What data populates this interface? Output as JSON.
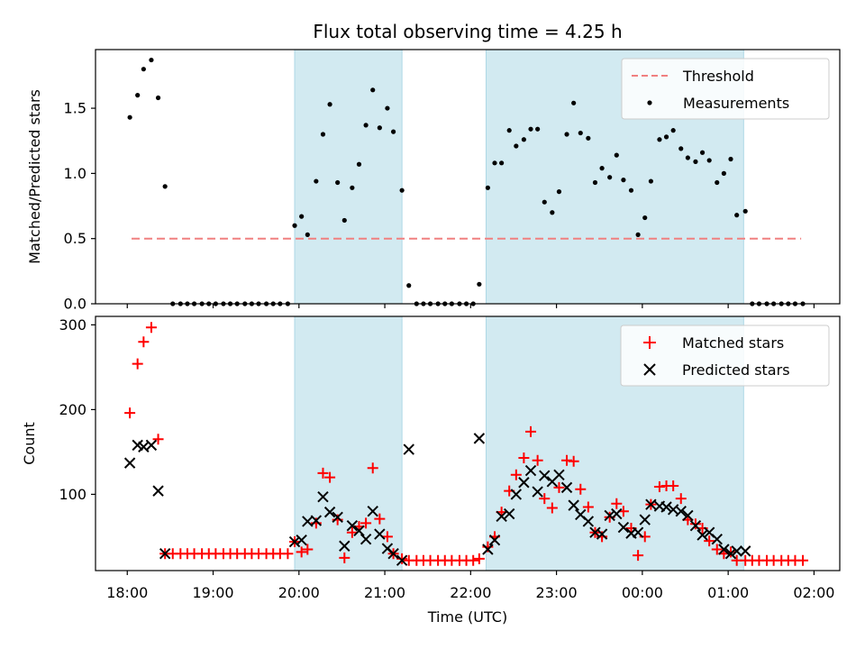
{
  "chart_data": {
    "type": "scatter",
    "title": "Flux total observing time = 4.25 h",
    "xlabel": "Time (UTC)",
    "x_ticks": [
      "18:00",
      "19:00",
      "20:00",
      "21:00",
      "22:00",
      "23:00",
      "00:00",
      "01:00",
      "02:00"
    ],
    "x_unit": "hours since 18:00 UTC",
    "shaded_intervals": [
      [
        1.95,
        3.2
      ],
      [
        4.18,
        7.18
      ]
    ],
    "shade_color": "#add8e6",
    "top": {
      "ylabel": "Matched/Predicted stars",
      "ylim": [
        0,
        1.95
      ],
      "y_ticks": [
        "0.0",
        "0.5",
        "1.0",
        "1.5"
      ],
      "threshold": {
        "name": "Threshold",
        "y": 0.5,
        "x_range": [
          0.05,
          7.85
        ],
        "color": "#f08080"
      },
      "measurements": {
        "name": "Measurements",
        "color": "#000000",
        "x": [
          0.03,
          0.12,
          0.19,
          0.28,
          0.36,
          0.44,
          0.53,
          0.62,
          0.7,
          0.78,
          0.87,
          0.95,
          1.03,
          1.12,
          1.2,
          1.28,
          1.37,
          1.45,
          1.53,
          1.62,
          1.7,
          1.78,
          1.87,
          1.95,
          2.03,
          2.1,
          2.2,
          2.28,
          2.36,
          2.45,
          2.53,
          2.62,
          2.7,
          2.78,
          2.86,
          2.94,
          3.03,
          3.1,
          3.2,
          3.28,
          3.37,
          3.45,
          3.53,
          3.62,
          3.7,
          3.78,
          3.87,
          3.95,
          4.03,
          4.1,
          4.2,
          4.28,
          4.36,
          4.45,
          4.53,
          4.62,
          4.7,
          4.78,
          4.86,
          4.95,
          5.03,
          5.12,
          5.2,
          5.28,
          5.37,
          5.45,
          5.53,
          5.62,
          5.7,
          5.78,
          5.87,
          5.95,
          6.03,
          6.1,
          6.2,
          6.28,
          6.36,
          6.45,
          6.53,
          6.62,
          6.7,
          6.78,
          6.87,
          6.95,
          7.03,
          7.1,
          7.2,
          7.28,
          7.36,
          7.45,
          7.53,
          7.62,
          7.7,
          7.78,
          7.87
        ],
        "y": [
          1.43,
          1.6,
          1.8,
          1.87,
          1.58,
          0.9,
          0.0,
          0.0,
          0.0,
          0.0,
          0.0,
          0.0,
          0.0,
          0.0,
          0.0,
          0.0,
          0.0,
          0.0,
          0.0,
          0.0,
          0.0,
          0.0,
          0.0,
          0.6,
          0.67,
          0.53,
          0.94,
          1.3,
          1.53,
          0.93,
          0.64,
          0.89,
          1.07,
          1.37,
          1.64,
          1.35,
          1.5,
          1.32,
          0.87,
          0.14,
          0.0,
          0.0,
          0.0,
          0.0,
          0.0,
          0.0,
          0.0,
          0.0,
          0.0,
          0.15,
          0.89,
          1.08,
          1.08,
          1.33,
          1.21,
          1.26,
          1.34,
          1.34,
          0.78,
          0.7,
          0.86,
          1.3,
          1.54,
          1.31,
          1.27,
          0.93,
          1.04,
          0.97,
          1.14,
          0.95,
          0.87,
          0.53,
          0.66,
          0.94,
          1.26,
          1.28,
          1.33,
          1.19,
          1.12,
          1.09,
          1.16,
          1.1,
          0.93,
          1.0,
          1.11,
          0.68,
          0.71,
          0.0,
          0.0,
          0.0,
          0.0,
          0.0,
          0.0,
          0.0,
          0.0
        ]
      },
      "legend": {
        "placement": "top-right",
        "entries": [
          "Threshold",
          "Measurements"
        ]
      }
    },
    "bottom": {
      "ylabel": "Count",
      "ylim": [
        10,
        310
      ],
      "y_ticks": [
        "100",
        "200",
        "300"
      ],
      "matched": {
        "name": "Matched stars",
        "color": "#ff0000",
        "x": [
          0.03,
          0.12,
          0.19,
          0.28,
          0.36,
          0.44,
          0.53,
          0.62,
          0.7,
          0.78,
          0.87,
          0.95,
          1.03,
          1.12,
          1.2,
          1.28,
          1.37,
          1.45,
          1.53,
          1.62,
          1.7,
          1.78,
          1.87,
          1.95,
          2.03,
          2.1,
          2.2,
          2.28,
          2.36,
          2.45,
          2.53,
          2.62,
          2.7,
          2.78,
          2.86,
          2.94,
          3.03,
          3.1,
          3.2,
          3.28,
          3.37,
          3.45,
          3.53,
          3.62,
          3.7,
          3.78,
          3.87,
          3.95,
          4.03,
          4.1,
          4.2,
          4.28,
          4.36,
          4.45,
          4.53,
          4.62,
          4.7,
          4.78,
          4.86,
          4.95,
          5.03,
          5.12,
          5.2,
          5.28,
          5.37,
          5.45,
          5.53,
          5.62,
          5.7,
          5.78,
          5.87,
          5.95,
          6.03,
          6.1,
          6.2,
          6.28,
          6.36,
          6.45,
          6.53,
          6.62,
          6.7,
          6.78,
          6.87,
          6.95,
          7.03,
          7.1,
          7.2,
          7.28,
          7.36,
          7.45,
          7.53,
          7.62,
          7.7,
          7.78,
          7.87
        ],
        "y": [
          196,
          254,
          280,
          297,
          165,
          30,
          30,
          30,
          30,
          30,
          30,
          30,
          30,
          30,
          30,
          30,
          30,
          30,
          30,
          30,
          30,
          30,
          30,
          44,
          32,
          35,
          66,
          125,
          120,
          70,
          25,
          55,
          62,
          66,
          131,
          71,
          50,
          30,
          24,
          22,
          22,
          22,
          22,
          22,
          22,
          22,
          22,
          22,
          22,
          24,
          38,
          50,
          79,
          104,
          123,
          143,
          174,
          140,
          95,
          84,
          108,
          140,
          139,
          106,
          85,
          55,
          50,
          73,
          89,
          80,
          60,
          28,
          50,
          88,
          109,
          110,
          110,
          95,
          70,
          65,
          60,
          45,
          35,
          30,
          32,
          22,
          22,
          22,
          22,
          22,
          22,
          22,
          22,
          22,
          22
        ]
      },
      "predicted": {
        "name": "Predicted stars",
        "color": "#000000",
        "x": [
          0.03,
          0.12,
          0.19,
          0.28,
          0.36,
          0.44,
          1.95,
          2.03,
          2.1,
          2.2,
          2.28,
          2.36,
          2.45,
          2.53,
          2.62,
          2.7,
          2.78,
          2.86,
          2.94,
          3.03,
          3.1,
          3.2,
          3.28,
          4.1,
          4.2,
          4.28,
          4.36,
          4.45,
          4.53,
          4.62,
          4.7,
          4.78,
          4.86,
          4.95,
          5.03,
          5.12,
          5.2,
          5.28,
          5.37,
          5.45,
          5.53,
          5.62,
          5.7,
          5.78,
          5.87,
          5.95,
          6.03,
          6.1,
          6.2,
          6.28,
          6.36,
          6.45,
          6.53,
          6.62,
          6.7,
          6.78,
          6.87,
          6.95,
          7.03,
          7.1,
          7.2
        ],
        "y": [
          137,
          158,
          156,
          158,
          104,
          30,
          44,
          46,
          68,
          69,
          97,
          79,
          73,
          39,
          63,
          57,
          47,
          80,
          53,
          36,
          30,
          22,
          153,
          166,
          35,
          46,
          74,
          77,
          100,
          114,
          128,
          103,
          122,
          115,
          123,
          108,
          87,
          76,
          68,
          55,
          53,
          75,
          77,
          61,
          54,
          55,
          70,
          88,
          86,
          85,
          82,
          80,
          75,
          63,
          52,
          55,
          47,
          35,
          30,
          33,
          33
        ]
      },
      "legend": {
        "placement": "top-right",
        "entries": [
          "Matched stars",
          "Predicted stars"
        ]
      }
    }
  }
}
